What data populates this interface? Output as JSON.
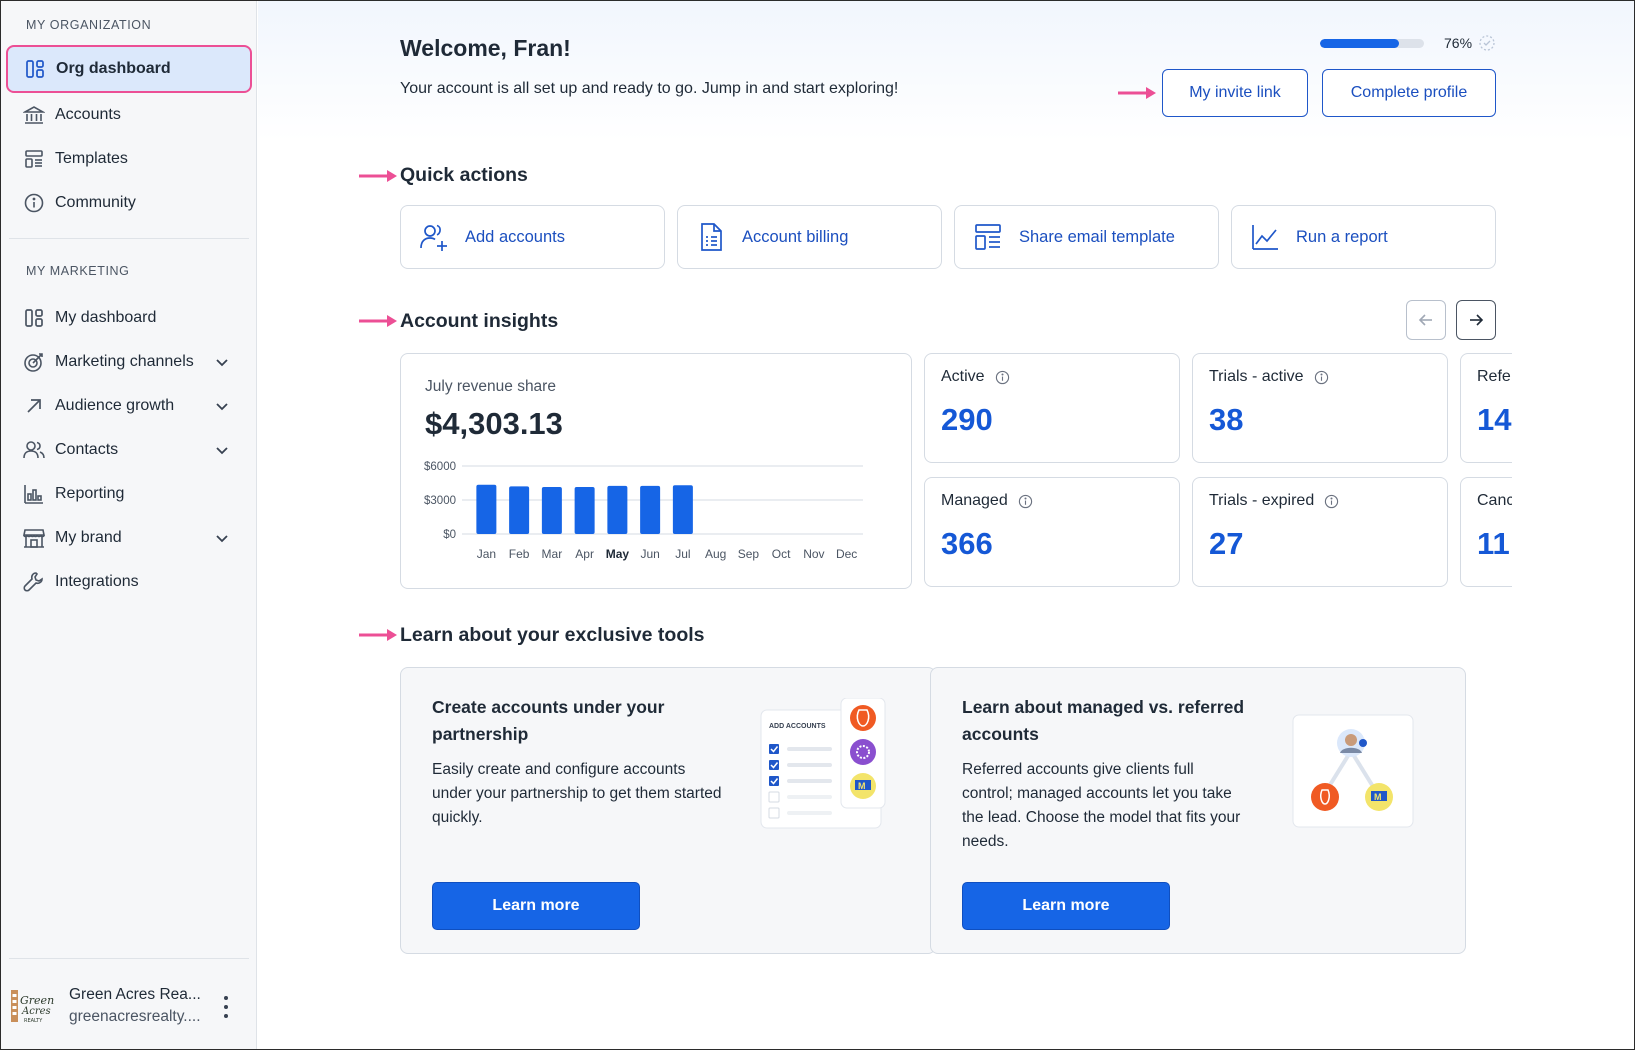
{
  "sidebar": {
    "org_section_label": "MY ORGANIZATION",
    "org_items": [
      {
        "label": "Org dashboard",
        "icon": "dashboard-icon"
      },
      {
        "label": "Accounts",
        "icon": "bank-icon"
      },
      {
        "label": "Templates",
        "icon": "templates-icon"
      },
      {
        "label": "Community",
        "icon": "info-icon"
      }
    ],
    "marketing_section_label": "MY MARKETING",
    "marketing_items": [
      {
        "label": "My dashboard",
        "icon": "dashboard-icon"
      },
      {
        "label": "Marketing channels",
        "icon": "target-icon"
      },
      {
        "label": "Audience growth",
        "icon": "arrow-up-right-icon"
      },
      {
        "label": "Contacts",
        "icon": "contacts-icon"
      },
      {
        "label": "Reporting",
        "icon": "bar-chart-icon"
      },
      {
        "label": "My brand",
        "icon": "storefront-icon"
      },
      {
        "label": "Integrations",
        "icon": "wrench-icon"
      }
    ],
    "footer": {
      "org_name": "Green Acres Rea...",
      "org_email": "greenacresrealty...."
    }
  },
  "header": {
    "welcome": "Welcome, Fran!",
    "subtitle": "Your account is all set up and ready to go. Jump in and start exploring!",
    "progress_percent": 76,
    "progress_label": "76%",
    "invite_button": "My invite link",
    "profile_button": "Complete profile"
  },
  "quick_actions": {
    "title": "Quick actions",
    "items": [
      {
        "label": "Add accounts",
        "icon": "add-user-icon"
      },
      {
        "label": "Account billing",
        "icon": "invoice-icon"
      },
      {
        "label": "Share email template",
        "icon": "template-icon"
      },
      {
        "label": "Run a report",
        "icon": "line-chart-icon"
      }
    ]
  },
  "insights": {
    "title": "Account insights",
    "revenue": {
      "title": "July revenue share",
      "value": "$4,303.13"
    },
    "stats": [
      {
        "label": "Active",
        "value": "290"
      },
      {
        "label": "Trials - active",
        "value": "38"
      },
      {
        "label": "Refe",
        "value": "14"
      },
      {
        "label": "Managed",
        "value": "366"
      },
      {
        "label": "Trials - expired",
        "value": "27"
      },
      {
        "label": "Canc",
        "value": "11"
      }
    ]
  },
  "chart_data": {
    "type": "bar",
    "title": "",
    "categories": [
      "Jan",
      "Feb",
      "Mar",
      "Apr",
      "May",
      "Jun",
      "Jul",
      "Aug",
      "Sep",
      "Oct",
      "Nov",
      "Dec"
    ],
    "values": [
      4350,
      4200,
      4150,
      4150,
      4250,
      4250,
      4303.13,
      null,
      null,
      null,
      null,
      null
    ],
    "highlighted_category": "May",
    "ylim": [
      0,
      6000
    ],
    "yticks": [
      "$6000",
      "$3000",
      "$0"
    ],
    "ytick_values": [
      6000,
      3000,
      0
    ],
    "grid": true,
    "color": "#1665e6"
  },
  "learn": {
    "title": "Learn about your exclusive tools",
    "cards": [
      {
        "title": "Create accounts under your partnership",
        "body": "Easily create and configure accounts under your partnership to get them started quickly.",
        "button": "Learn more",
        "illus_label": "ADD ACCOUNTS"
      },
      {
        "title": "Learn about managed vs. referred accounts",
        "body": "Referred accounts give clients full control; managed accounts let you take the lead. Choose the model that fits your needs.",
        "button": "Learn more"
      }
    ]
  },
  "colors": {
    "accent": "#1665e6",
    "highlight_pink": "#ec4f95",
    "active_bg": "#dbe8fb"
  }
}
